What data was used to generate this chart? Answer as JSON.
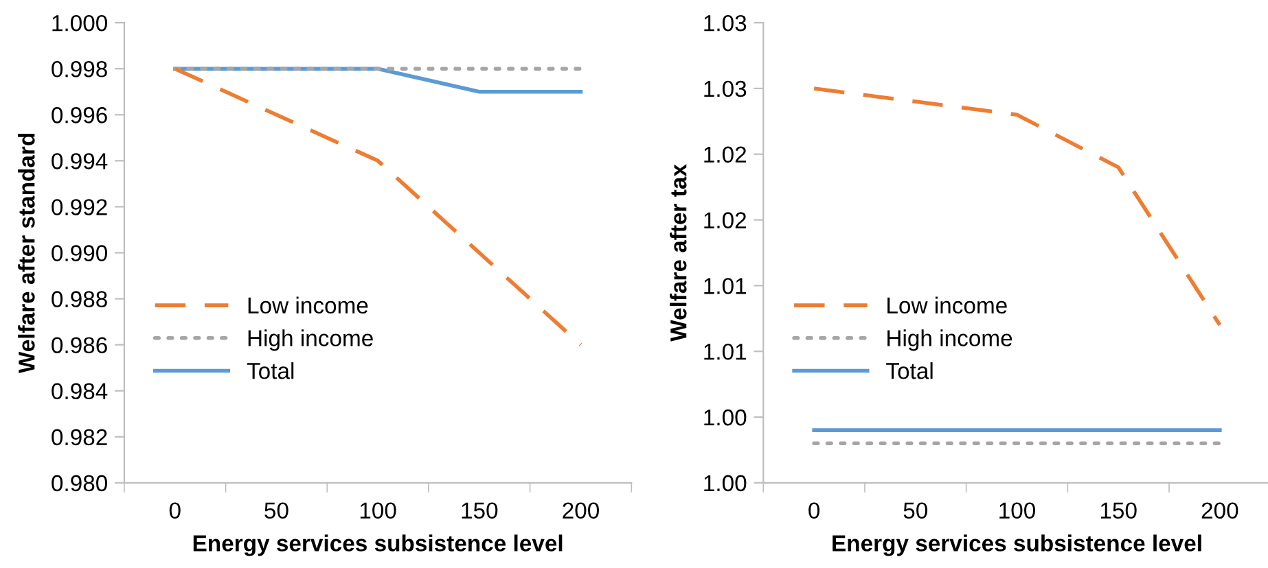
{
  "chart_data": [
    {
      "type": "line",
      "xlabel": "Energy services subsistence level",
      "ylabel": "Welfare after standard",
      "categories": [
        "0",
        "50",
        "100",
        "150",
        "200"
      ],
      "series": [
        {
          "name": "Low income",
          "color": "#ed7d31",
          "line_style": "dashed",
          "values": [
            0.998,
            0.996,
            0.994,
            0.99,
            0.986
          ]
        },
        {
          "name": "High income",
          "color": "#a5a5a5",
          "line_style": "dotted",
          "values": [
            0.998,
            0.998,
            0.998,
            0.998,
            0.998
          ]
        },
        {
          "name": "Total",
          "color": "#5b9bd5",
          "line_style": "solid",
          "values": [
            0.998,
            0.998,
            0.998,
            0.997,
            0.997
          ]
        }
      ],
      "ylim": [
        0.98,
        1.0
      ],
      "yticks": [
        {
          "value": 0.98,
          "label": "0.980"
        },
        {
          "value": 0.982,
          "label": "0.982"
        },
        {
          "value": 0.984,
          "label": "0.984"
        },
        {
          "value": 0.986,
          "label": "0.986"
        },
        {
          "value": 0.988,
          "label": "0.988"
        },
        {
          "value": 0.99,
          "label": "0.990"
        },
        {
          "value": 0.992,
          "label": "0.992"
        },
        {
          "value": 0.994,
          "label": "0.994"
        },
        {
          "value": 0.996,
          "label": "0.996"
        },
        {
          "value": 0.998,
          "label": "0.998"
        },
        {
          "value": 1.0,
          "label": "1.000"
        }
      ],
      "grid": false,
      "legend": "left",
      "marker": "none"
    },
    {
      "type": "line",
      "xlabel": "Energy services subsistence level",
      "ylabel": "Welfare after tax",
      "categories": [
        "0",
        "50",
        "100",
        "150",
        "200"
      ],
      "series": [
        {
          "name": "Low income",
          "color": "#ed7d31",
          "line_style": "dashed",
          "values": [
            1.03,
            1.029,
            1.028,
            1.024,
            1.012
          ]
        },
        {
          "name": "High income",
          "color": "#a5a5a5",
          "line_style": "dotted",
          "values": [
            1.003,
            1.003,
            1.003,
            1.003,
            1.003
          ]
        },
        {
          "name": "Total",
          "color": "#5b9bd5",
          "line_style": "solid",
          "values": [
            1.004,
            1.004,
            1.004,
            1.004,
            1.004
          ]
        }
      ],
      "ylim": [
        1.0,
        1.035
      ],
      "yticks": [
        {
          "value": 1.0,
          "label": "1.00"
        },
        {
          "value": 1.005,
          "label": "1.00"
        },
        {
          "value": 1.01,
          "label": "1.01"
        },
        {
          "value": 1.015,
          "label": "1.01"
        },
        {
          "value": 1.02,
          "label": "1.02"
        },
        {
          "value": 1.025,
          "label": "1.02"
        },
        {
          "value": 1.03,
          "label": "1.03"
        },
        {
          "value": 1.035,
          "label": "1.03"
        }
      ],
      "grid": false,
      "legend": "left",
      "marker": "none"
    }
  ]
}
